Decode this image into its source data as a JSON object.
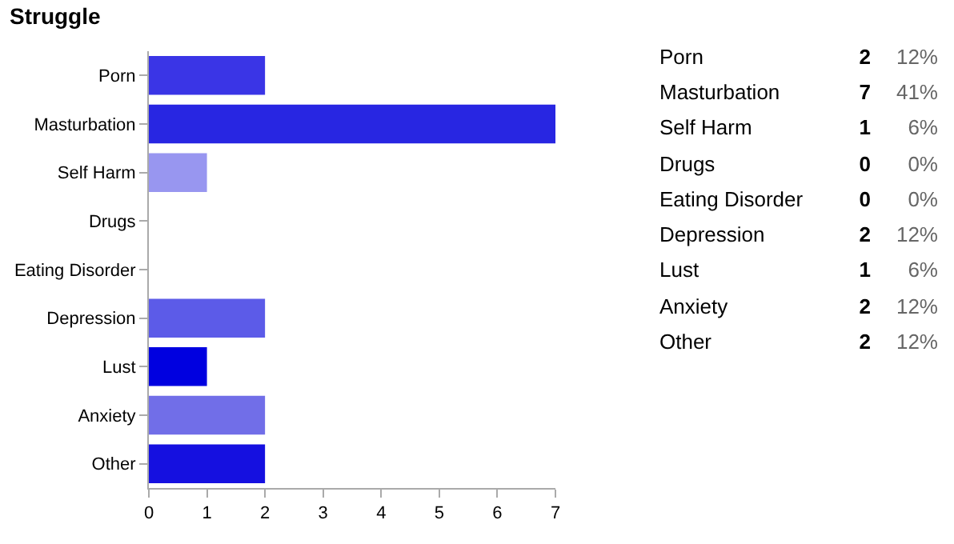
{
  "chart_data": [
    {
      "type": "bar",
      "orientation": "horizontal",
      "title": "Struggle",
      "categories": [
        "Porn",
        "Masturbation",
        "Self Harm",
        "Drugs",
        "Eating Disorder",
        "Depression",
        "Lust",
        "Anxiety",
        "Other"
      ],
      "values": [
        2,
        7,
        1,
        0,
        0,
        2,
        1,
        2,
        2
      ],
      "colors": [
        "#3a35e6",
        "#2826e2",
        "#9896f0",
        "#4a4ae6",
        "#4a4ae6",
        "#5c5be8",
        "#0000e0",
        "#716ee8",
        "#1510e0"
      ],
      "xlim": [
        0,
        7
      ],
      "xticks": [
        0,
        1,
        2,
        3,
        4,
        5,
        6,
        7
      ],
      "grid": false,
      "legend": false
    },
    {
      "type": "other",
      "annotations": [
        "Porn",
        "2",
        "12%",
        "Masturbation",
        "7",
        "41%",
        "Self Harm",
        "1",
        "6%",
        "Drugs",
        "0",
        "0%",
        "Eating Disorder",
        "0",
        "0%",
        "Depression",
        "2",
        "12%",
        "Lust",
        "1",
        "6%",
        "Anxiety",
        "2",
        "12%",
        "Other",
        "2",
        "12%"
      ]
    }
  ]
}
